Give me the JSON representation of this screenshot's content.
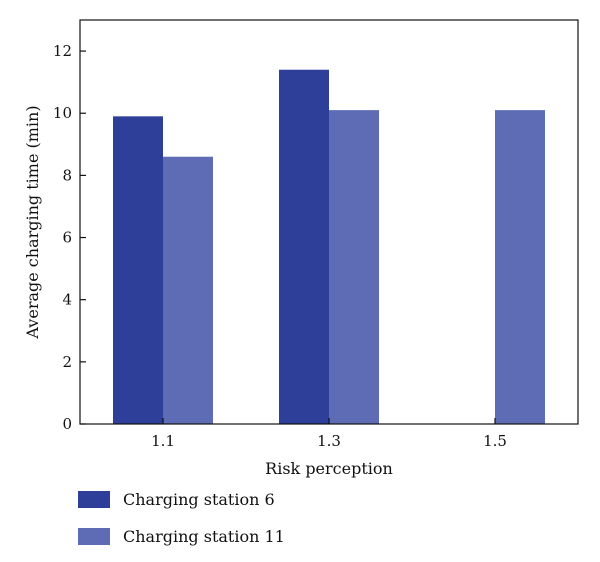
{
  "chart_data": {
    "type": "bar",
    "categories": [
      "1.1",
      "1.3",
      "1.5"
    ],
    "series": [
      {
        "name": "Charging station 6",
        "values": [
          9.9,
          11.4,
          null
        ],
        "color": "#2e3f9a"
      },
      {
        "name": "Charging station 11",
        "values": [
          8.6,
          10.1,
          10.1
        ],
        "color": "#5d6cb5"
      }
    ],
    "xlabel": "Risk perception",
    "ylabel": "Average charging time (min)",
    "ylim": [
      0,
      13
    ],
    "yticks": [
      0,
      2,
      4,
      6,
      8,
      10,
      12
    ],
    "grid": false,
    "legend_position": "bottom-left"
  }
}
